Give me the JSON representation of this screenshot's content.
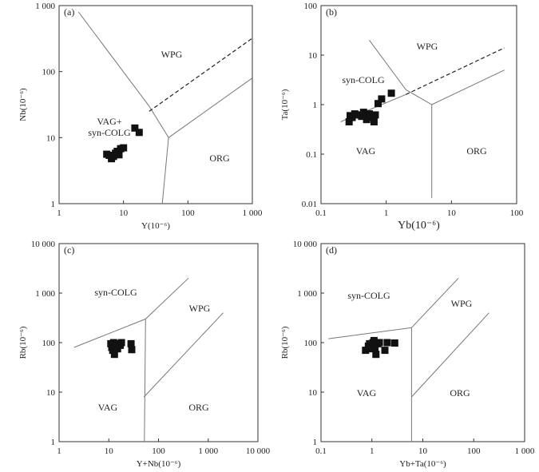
{
  "chart_data": [
    {
      "panel": "(a)",
      "type": "scatter",
      "xlabel": "Y(10⁻⁶)",
      "ylabel": "Nb(10⁻⁶)",
      "xscale": "log",
      "yscale": "log",
      "xlim": [
        1,
        1000
      ],
      "ylim": [
        1,
        1000
      ],
      "xticks": [
        "1",
        "10",
        "100",
        "1 000"
      ],
      "yticks": [
        "1",
        "10",
        "100",
        "1 000"
      ],
      "regions": [
        "WPG",
        "VAG+\nsyn-COLG",
        "ORG"
      ],
      "points": [
        [
          5.5,
          5.6
        ],
        [
          6,
          5.4
        ],
        [
          6.5,
          4.8
        ],
        [
          7,
          5.2
        ],
        [
          7.5,
          5.8
        ],
        [
          8,
          6.2
        ],
        [
          8.5,
          5.5
        ],
        [
          9,
          6.8
        ],
        [
          10,
          7
        ],
        [
          15,
          14
        ],
        [
          17.5,
          12
        ]
      ],
      "boundaries": [
        {
          "style": "solid",
          "x": [
            2,
            25,
            50,
            40
          ],
          "y": [
            800,
            30,
            10,
            1
          ]
        },
        {
          "style": "solid",
          "x": [
            50,
            1000
          ],
          "y": [
            10,
            80
          ]
        },
        {
          "style": "dashed",
          "x": [
            25,
            1000
          ],
          "y": [
            25,
            320
          ]
        }
      ]
    },
    {
      "panel": "(b)",
      "type": "scatter",
      "xlabel": "Yb(10⁻⁶)",
      "ylabel": "Ta(10⁻⁶)",
      "xscale": "log",
      "yscale": "log",
      "xlim": [
        0.1,
        100
      ],
      "ylim": [
        0.01,
        100
      ],
      "xticks": [
        "0.1",
        "1",
        "10",
        "100"
      ],
      "yticks": [
        "0.01",
        "0.1",
        "1",
        "10",
        "100"
      ],
      "regions": [
        "WPG",
        "syn-COLG",
        "VAG",
        "ORG"
      ],
      "points": [
        [
          0.27,
          0.45
        ],
        [
          0.28,
          0.6
        ],
        [
          0.3,
          0.55
        ],
        [
          0.33,
          0.65
        ],
        [
          0.38,
          0.62
        ],
        [
          0.42,
          0.58
        ],
        [
          0.45,
          0.7
        ],
        [
          0.5,
          0.5
        ],
        [
          0.52,
          0.6
        ],
        [
          0.55,
          0.65
        ],
        [
          0.6,
          0.55
        ],
        [
          0.65,
          0.45
        ],
        [
          0.68,
          0.62
        ],
        [
          0.75,
          1.05
        ],
        [
          0.85,
          1.3
        ],
        [
          1.2,
          1.7
        ]
      ],
      "boundaries": [
        {
          "style": "solid",
          "x": [
            0.55,
            2,
            5,
            5
          ],
          "y": [
            20,
            2,
            1,
            0.013
          ]
        },
        {
          "style": "solid",
          "x": [
            5,
            65
          ],
          "y": [
            1,
            5
          ]
        },
        {
          "style": "solid",
          "x": [
            0.2,
            2
          ],
          "y": [
            0.45,
            1.6
          ]
        },
        {
          "style": "dashed",
          "x": [
            2,
            65
          ],
          "y": [
            1.6,
            14
          ]
        }
      ]
    },
    {
      "panel": "(c)",
      "type": "scatter",
      "xlabel": "Y+Nb(10⁻⁶)",
      "ylabel": "Rb(10⁻⁶)",
      "xscale": "log",
      "yscale": "log",
      "xlim": [
        1,
        10000
      ],
      "ylim": [
        1,
        10000
      ],
      "xticks": [
        "1",
        "10",
        "100",
        "1 000",
        "10 000"
      ],
      "yticks": [
        "1",
        "10",
        "100",
        "1 000",
        "10 000"
      ],
      "regions": [
        "syn-COLG",
        "WPG",
        "VAG",
        "ORG"
      ],
      "points": [
        [
          11,
          95
        ],
        [
          11.5,
          80
        ],
        [
          12,
          70
        ],
        [
          12.5,
          100
        ],
        [
          13,
          58
        ],
        [
          13.5,
          85
        ],
        [
          14,
          90
        ],
        [
          15,
          75
        ],
        [
          16,
          95
        ],
        [
          17,
          88
        ],
        [
          18,
          100
        ],
        [
          28,
          95
        ],
        [
          29,
          72
        ]
      ],
      "boundaries": [
        {
          "style": "solid",
          "x": [
            2,
            55,
            400
          ],
          "y": [
            80,
            300,
            2000
          ]
        },
        {
          "style": "solid",
          "x": [
            55,
            52
          ],
          "y": [
            300,
            1
          ]
        },
        {
          "style": "solid",
          "x": [
            51,
            2000
          ],
          "y": [
            8,
            400
          ]
        }
      ]
    },
    {
      "panel": "(d)",
      "type": "scatter",
      "xlabel": "Yb+Ta(10⁻⁶)",
      "ylabel": "Rb(10⁻⁶)",
      "xscale": "log",
      "yscale": "log",
      "xlim": [
        0.1,
        1000
      ],
      "ylim": [
        1,
        10000
      ],
      "xticks": [
        "0.1",
        "1",
        "10",
        "100",
        "1 000"
      ],
      "yticks": [
        "1",
        "10",
        "100",
        "1 000",
        "10 000"
      ],
      "regions": [
        "syn-COLG",
        "WPG",
        "VAG",
        "ORG"
      ],
      "points": [
        [
          0.75,
          70
        ],
        [
          0.85,
          85
        ],
        [
          0.9,
          95
        ],
        [
          1.0,
          75
        ],
        [
          1.05,
          100
        ],
        [
          1.1,
          110
        ],
        [
          1.15,
          80
        ],
        [
          1.2,
          58
        ],
        [
          1.3,
          95
        ],
        [
          1.4,
          100
        ],
        [
          1.8,
          70
        ],
        [
          2.0,
          100
        ],
        [
          2.8,
          98
        ]
      ],
      "boundaries": [
        {
          "style": "solid",
          "x": [
            0.14,
            6,
            50
          ],
          "y": [
            120,
            200,
            2000
          ]
        },
        {
          "style": "solid",
          "x": [
            6,
            6
          ],
          "y": [
            200,
            1
          ]
        },
        {
          "style": "solid",
          "x": [
            6,
            200
          ],
          "y": [
            8,
            400
          ]
        }
      ]
    }
  ]
}
